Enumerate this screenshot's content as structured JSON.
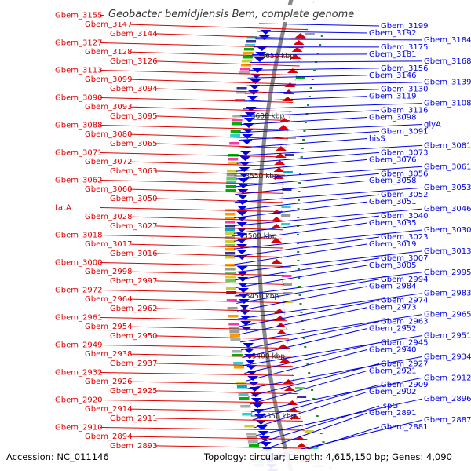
{
  "title": "Geobacter bemidjiensis Bem, complete genome",
  "accession_text": "Accession: NC_011146",
  "topology_text": "Topology: circular; Length: 4,615,150 bp; Genes: 4,090",
  "colors": {
    "left": "#e00000",
    "right": "#0000e6",
    "backbone": "#888888"
  },
  "kbp_labels": [
    "3650 kbp",
    "3600 kbp",
    "3550 kbp",
    "3500 kbp",
    "3450 kbp",
    "3400 kbp",
    "3350 kbp"
  ],
  "left_genes": [
    "Gbem_3155",
    "Gbem_3147",
    "Gbem_3144",
    "Gbem_3127",
    "Gbem_3128",
    "Gbem_3126",
    "Gbem_3113",
    "Gbem_3099",
    "Gbem_3094",
    "Gbem_3090",
    "Gbem_3093",
    "Gbem_3095",
    "Gbem_3088",
    "Gbem_3080",
    "Gbem_3065",
    "Gbem_3071",
    "Gbem_3072",
    "Gbem_3063",
    "Gbem_3062",
    "Gbem_3060",
    "Gbem_3050",
    "tatA",
    "Gbem_3028",
    "Gbem_3027",
    "Gbem_3018",
    "Gbem_3017",
    "Gbem_3016",
    "Gbem_3000",
    "Gbem_2998",
    "Gbem_2997",
    "Gbem_2972",
    "Gbem_2964",
    "Gbem_2962",
    "Gbem_2961",
    "Gbem_2954",
    "Gbem_2950",
    "Gbem_2949",
    "Gbem_2938",
    "Gbem_2937",
    "Gbem_2932",
    "Gbem_2926",
    "Gbem_2925",
    "Gbem_2920",
    "Gbem_2914",
    "Gbem_2911",
    "Gbem_2910",
    "Gbem_2894",
    "Gbem_2893"
  ],
  "right_genes": [
    "Gbem_3199",
    "Gbem_3192",
    "Gbem_3184",
    "Gbem_3175",
    "Gbem_3181",
    "Gbem_3168",
    "Gbem_3156",
    "Gbem_3146",
    "Gbem_3139",
    "Gbem_3130",
    "Gbem_3119",
    "Gbem_3108",
    "Gbem_3116",
    "Gbem_3098",
    "glyA",
    "Gbem_3091",
    "hisS",
    "Gbem_3081",
    "Gbem_3073",
    "Gbem_3076",
    "Gbem_3061",
    "Gbem_3056",
    "Gbem_3058",
    "Gbem_3053",
    "Gbem_3052",
    "Gbem_3051",
    "Gbem_3046",
    "Gbem_3040",
    "Gbem_3035",
    "Gbem_3030",
    "Gbem_3023",
    "Gbem_3019",
    "Gbem_3013",
    "Gbem_3007",
    "Gbem_3005",
    "Gbem_2995",
    "Gbem_2994",
    "Gbem_2984",
    "Gbem_2983",
    "Gbem_2974",
    "Gbem_2973",
    "Gbem_2965",
    "Gbem_2963",
    "Gbem_2952",
    "Gbem_2951",
    "Gbem_2945",
    "Gbem_2940",
    "Gbem_2934",
    "Gbem_2927",
    "Gbem_2921",
    "Gbem_2912",
    "Gbem_2909",
    "Gbem_2902",
    "Gbem_2896",
    "ispG",
    "Gbem_2891",
    "Gbem_2887",
    "Gbem_2881"
  ]
}
